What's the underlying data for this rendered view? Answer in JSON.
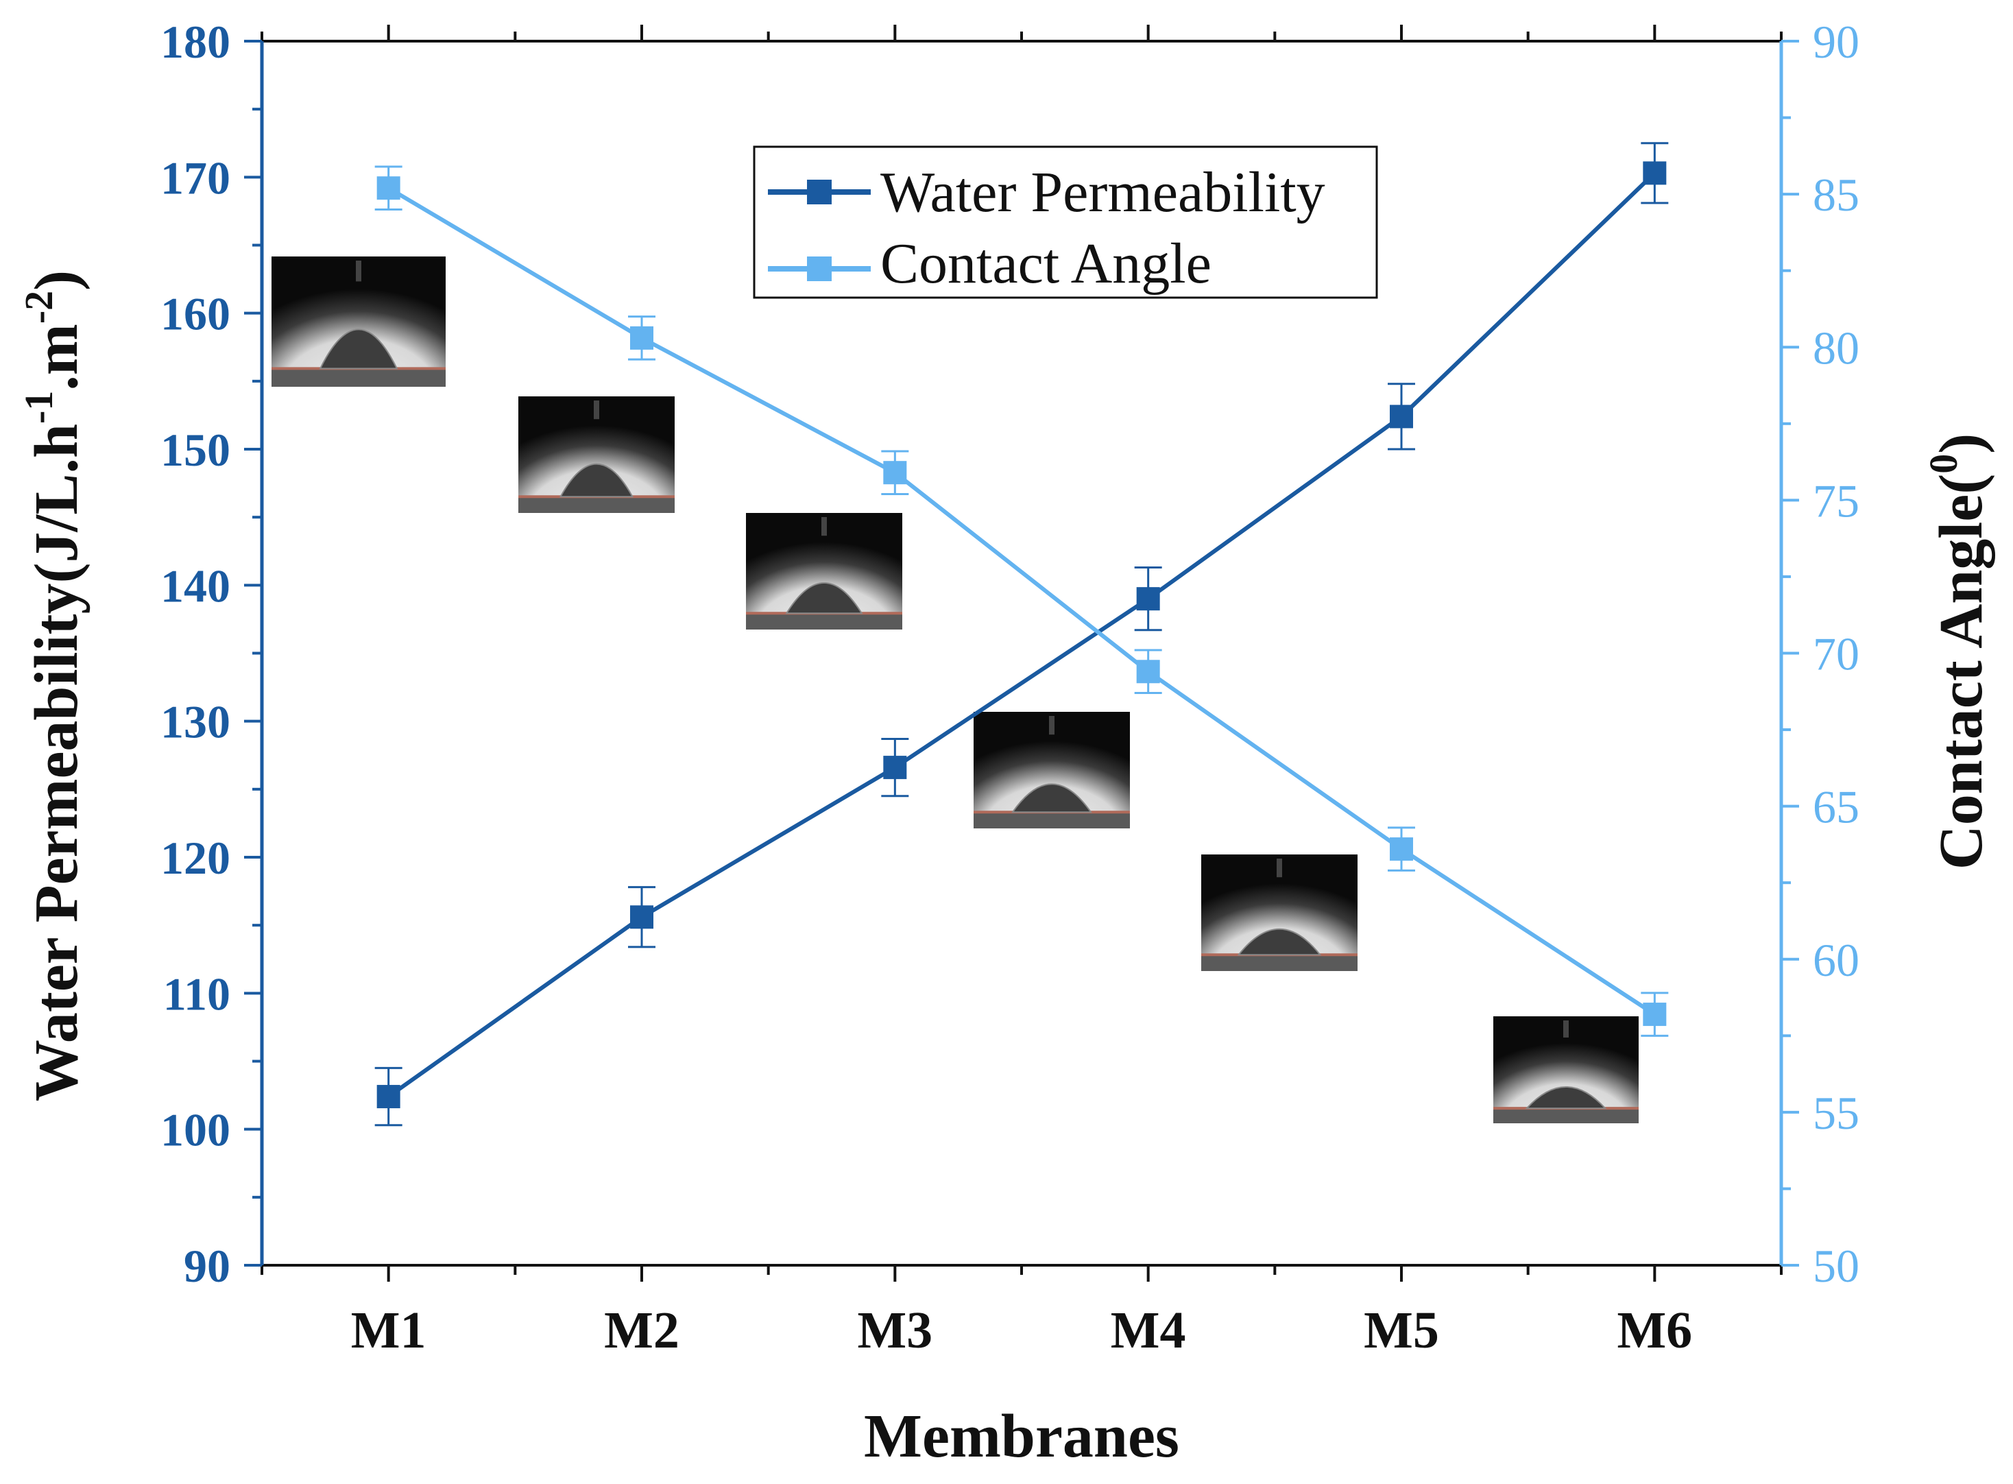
{
  "chart_data": {
    "type": "line",
    "title": "",
    "categories": [
      "M1",
      "M2",
      "M3",
      "M4",
      "M5",
      "M6"
    ],
    "xlabel": "Membranes",
    "ylabel": "Water Permeability(J/L.h^-1.m^-2)",
    "ylabel_parts": {
      "main": "Water Permeability(J/L.h",
      "sup1": "-1",
      "mid": ".m",
      "sup2": "-2",
      "end": ")"
    },
    "y2label": "Contact Angle(0)",
    "y2label_parts": {
      "main": "Contact Angle(",
      "sup": "0",
      "end": ")"
    },
    "ylim": [
      90,
      180
    ],
    "y2lim": [
      50,
      90
    ],
    "yticks": [
      90,
      100,
      110,
      120,
      130,
      140,
      150,
      160,
      170,
      180
    ],
    "y2ticks": [
      50,
      55,
      60,
      65,
      70,
      75,
      80,
      85,
      90
    ],
    "series": [
      {
        "name": "Water Permeability",
        "axis": "left",
        "color": "#1a5aa0",
        "values": [
          102.4,
          115.6,
          126.6,
          139.0,
          152.4,
          170.3
        ],
        "errors": [
          2.1,
          2.2,
          2.1,
          2.3,
          2.4,
          2.2
        ]
      },
      {
        "name": "Contact Angle",
        "axis": "right",
        "color": "#63b3f0",
        "values": [
          85.2,
          80.3,
          75.9,
          69.4,
          63.6,
          58.2
        ],
        "errors": [
          0.7,
          0.7,
          0.7,
          0.7,
          0.7,
          0.7
        ]
      }
    ],
    "legend_position": "top-center",
    "insets": "contact-angle droplet photographs M1-M6"
  },
  "colors": {
    "left_axis": "#1a5aa0",
    "right_axis": "#63b3f0",
    "text": "#111111"
  }
}
